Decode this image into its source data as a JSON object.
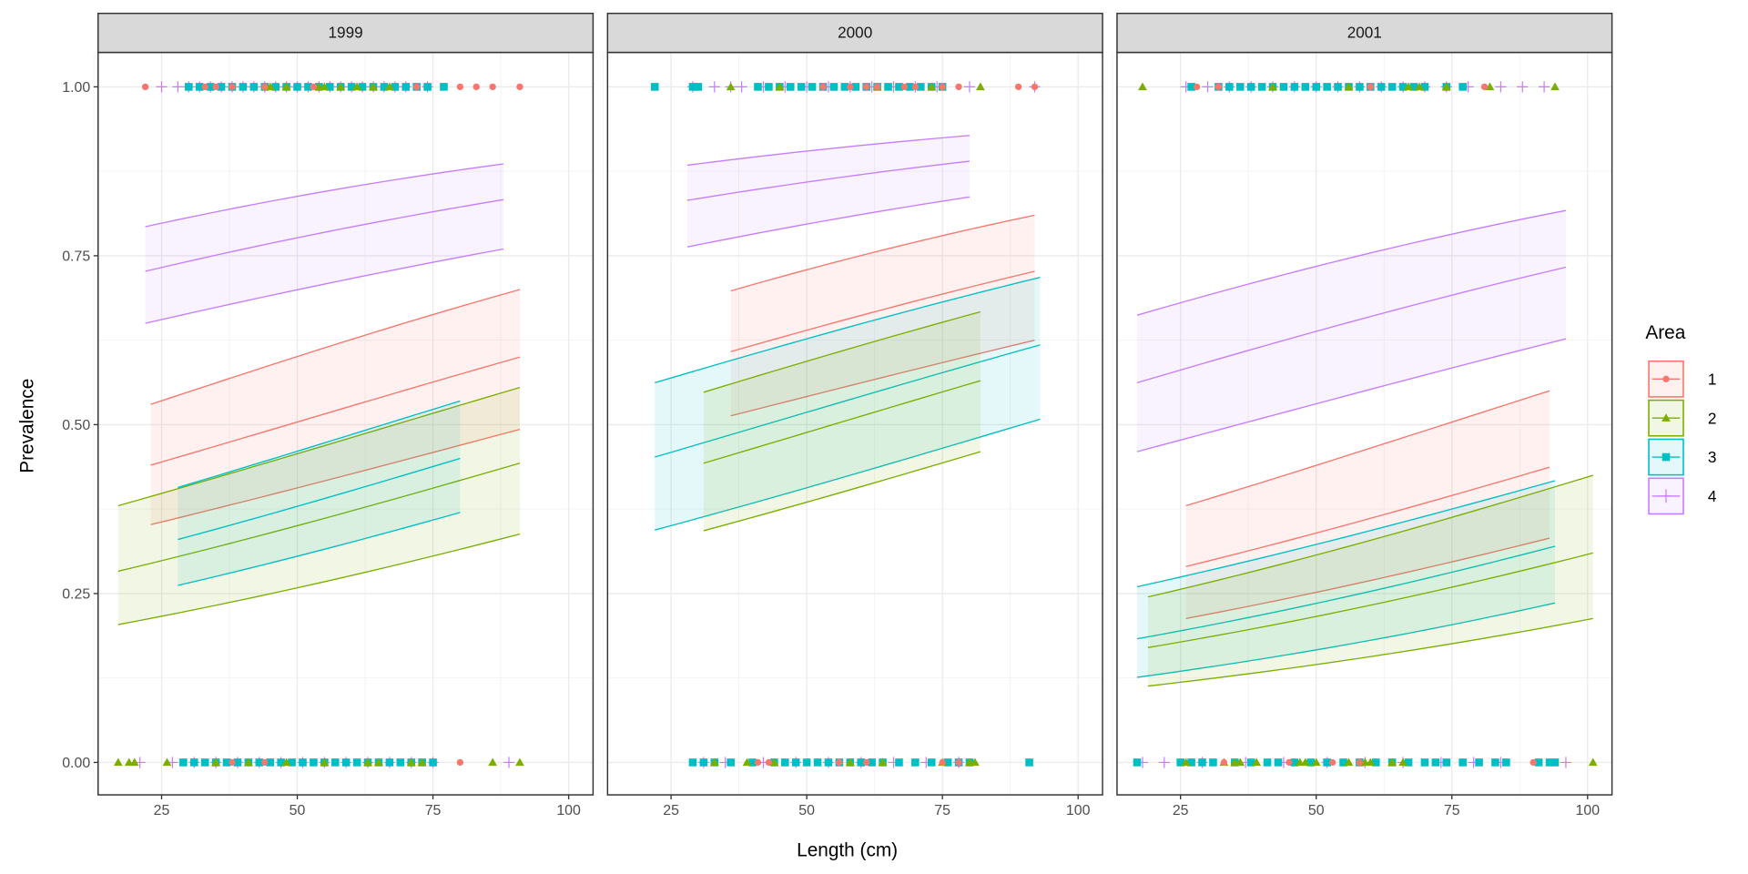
{
  "chart_data": {
    "type": "line",
    "facet_var": "Year",
    "facets": [
      "1999",
      "2000",
      "2001"
    ],
    "xlabel": "Length (cm)",
    "ylabel": "Prevalence",
    "xlim": [
      13.3,
      104.5
    ],
    "ylim": [
      -0.048,
      1.051
    ],
    "x_ticks": [
      "25",
      "50",
      "75",
      "100"
    ],
    "x_tick_values": [
      25,
      50,
      75,
      100
    ],
    "y_ticks": [
      "0.00",
      "0.25",
      "0.50",
      "0.75",
      "1.00"
    ],
    "y_tick_values": [
      0,
      0.25,
      0.5,
      0.75,
      1
    ],
    "grid": true,
    "legend": {
      "title": "Area",
      "position": "right",
      "entries": [
        "1",
        "2",
        "3",
        "4"
      ]
    },
    "colors": {
      "1": "#F8766D",
      "2": "#7CAE00",
      "3": "#00BFC4",
      "4": "#C77CFF"
    },
    "shapes": {
      "1": "circle",
      "2": "triangle",
      "3": "square",
      "4": "plus"
    },
    "series": [
      {
        "year": "1999",
        "area": "4",
        "x": [
          22,
          88
        ],
        "fit": [
          0.727,
          0.833
        ],
        "lower": [
          0.65,
          0.76
        ],
        "upper": [
          0.793,
          0.886
        ]
      },
      {
        "year": "1999",
        "area": "1",
        "x": [
          23,
          91
        ],
        "fit": [
          0.44,
          0.6
        ],
        "lower": [
          0.352,
          0.493
        ],
        "upper": [
          0.53,
          0.7
        ]
      },
      {
        "year": "1999",
        "area": "2",
        "x": [
          17,
          91
        ],
        "fit": [
          0.283,
          0.443
        ],
        "lower": [
          0.204,
          0.338
        ],
        "upper": [
          0.38,
          0.555
        ]
      },
      {
        "year": "1999",
        "area": "3",
        "x": [
          28,
          80
        ],
        "fit": [
          0.33,
          0.45
        ],
        "lower": [
          0.262,
          0.37
        ],
        "upper": [
          0.407,
          0.535
        ]
      },
      {
        "year": "2000",
        "area": "4",
        "x": [
          28,
          80
        ],
        "fit": [
          0.832,
          0.89
        ],
        "lower": [
          0.763,
          0.837
        ],
        "upper": [
          0.884,
          0.928
        ]
      },
      {
        "year": "2000",
        "area": "1",
        "x": [
          36,
          92
        ],
        "fit": [
          0.608,
          0.727
        ],
        "lower": [
          0.513,
          0.625
        ],
        "upper": [
          0.698,
          0.81
        ]
      },
      {
        "year": "2000",
        "area": "3",
        "x": [
          22,
          93
        ],
        "fit": [
          0.452,
          0.618
        ],
        "lower": [
          0.344,
          0.508
        ],
        "upper": [
          0.562,
          0.718
        ]
      },
      {
        "year": "2000",
        "area": "2",
        "x": [
          31,
          82
        ],
        "fit": [
          0.443,
          0.565
        ],
        "lower": [
          0.343,
          0.46
        ],
        "upper": [
          0.548,
          0.667
        ]
      },
      {
        "year": "2001",
        "area": "4",
        "x": [
          17,
          96
        ],
        "fit": [
          0.562,
          0.733
        ],
        "lower": [
          0.46,
          0.627
        ],
        "upper": [
          0.662,
          0.817
        ]
      },
      {
        "year": "2001",
        "area": "1",
        "x": [
          26,
          93
        ],
        "fit": [
          0.29,
          0.437
        ],
        "lower": [
          0.213,
          0.332
        ],
        "upper": [
          0.38,
          0.55
        ]
      },
      {
        "year": "2001",
        "area": "3",
        "x": [
          17,
          94
        ],
        "fit": [
          0.183,
          0.32
        ],
        "lower": [
          0.126,
          0.236
        ],
        "upper": [
          0.26,
          0.417
        ]
      },
      {
        "year": "2001",
        "area": "2",
        "x": [
          19,
          101
        ],
        "fit": [
          0.17,
          0.31
        ],
        "lower": [
          0.113,
          0.213
        ],
        "upper": [
          0.245,
          0.425
        ]
      }
    ],
    "points": [
      {
        "year": "1999",
        "area": "4",
        "y": 1,
        "x": [
          25,
          28,
          30,
          32,
          34,
          36,
          38,
          40,
          42,
          44,
          46,
          48,
          50,
          52,
          54,
          56,
          58,
          60,
          62,
          64,
          66,
          68,
          70,
          74
        ]
      },
      {
        "year": "1999",
        "area": "3",
        "y": 1,
        "x": [
          30,
          32,
          34,
          36,
          38,
          40,
          42,
          44,
          46,
          48,
          50,
          52,
          54,
          56,
          58,
          60,
          62,
          64,
          66,
          68,
          70,
          72,
          74,
          77
        ]
      },
      {
        "year": "1999",
        "area": "2",
        "y": 1,
        "x": [
          45,
          48,
          54,
          55,
          58,
          61,
          64,
          67
        ]
      },
      {
        "year": "1999",
        "area": "1",
        "y": 1,
        "x": [
          22,
          33,
          35,
          38,
          44,
          53,
          72,
          80,
          83,
          86,
          91
        ]
      },
      {
        "year": "1999",
        "area": "4",
        "y": 0,
        "x": [
          21,
          27,
          31,
          35,
          39,
          43,
          47,
          51,
          55,
          59,
          63,
          67,
          71,
          75,
          89
        ]
      },
      {
        "year": "1999",
        "area": "3",
        "y": 0,
        "x": [
          29,
          31,
          33,
          35,
          37,
          39,
          41,
          43,
          45,
          47,
          49,
          51,
          53,
          55,
          57,
          59,
          61,
          63,
          65,
          67,
          69,
          71,
          73,
          75
        ]
      },
      {
        "year": "1999",
        "area": "2",
        "y": 0,
        "x": [
          17,
          19,
          20,
          26,
          35,
          41,
          48,
          55,
          63,
          65,
          71,
          73,
          86,
          91
        ]
      },
      {
        "year": "1999",
        "area": "1",
        "y": 0,
        "x": [
          38,
          44,
          80
        ]
      },
      {
        "year": "2000",
        "area": "4",
        "y": 1,
        "x": [
          29,
          33,
          36,
          38,
          42,
          46,
          50,
          54,
          58,
          62,
          66,
          70,
          74,
          80,
          92
        ]
      },
      {
        "year": "2000",
        "area": "3",
        "y": 1,
        "x": [
          22,
          29,
          30,
          41,
          43,
          45,
          47,
          49,
          51,
          53,
          55,
          57,
          59,
          61,
          63,
          65,
          67,
          69,
          71,
          73,
          75
        ]
      },
      {
        "year": "2000",
        "area": "2",
        "y": 1,
        "x": [
          36,
          45,
          63,
          73,
          82
        ]
      },
      {
        "year": "2000",
        "area": "1",
        "y": 1,
        "x": [
          53,
          58,
          61,
          63,
          68,
          70,
          75,
          78,
          89,
          92
        ]
      },
      {
        "year": "2000",
        "area": "4",
        "y": 0,
        "x": [
          31,
          35,
          42,
          48,
          54,
          60,
          66,
          72,
          78
        ]
      },
      {
        "year": "2000",
        "area": "3",
        "y": 0,
        "x": [
          29,
          31,
          33,
          36,
          40,
          44,
          46,
          48,
          50,
          52,
          54,
          56,
          58,
          60,
          62,
          64,
          67,
          70,
          73,
          76,
          78,
          80,
          91
        ]
      },
      {
        "year": "2000",
        "area": "2",
        "y": 0,
        "x": [
          33,
          39,
          44,
          58,
          64,
          75,
          80,
          81
        ]
      },
      {
        "year": "2000",
        "area": "1",
        "y": 0,
        "x": [
          41,
          43,
          56,
          61,
          75,
          78
        ]
      },
      {
        "year": "2001",
        "area": "4",
        "y": 1,
        "x": [
          26,
          30,
          34,
          38,
          42,
          46,
          50,
          54,
          58,
          62,
          66,
          70,
          74,
          78,
          84,
          88,
          92
        ]
      },
      {
        "year": "2001",
        "area": "3",
        "y": 1,
        "x": [
          27,
          32,
          34,
          36,
          38,
          40,
          42,
          44,
          46,
          48,
          50,
          52,
          54,
          56,
          58,
          60,
          62,
          64,
          66,
          68,
          70,
          74,
          77
        ]
      },
      {
        "year": "2001",
        "area": "2",
        "y": 1,
        "x": [
          18,
          42,
          56,
          67,
          69,
          74,
          82,
          94
        ]
      },
      {
        "year": "2001",
        "area": "1",
        "y": 1,
        "x": [
          28,
          32,
          60,
          81
        ]
      },
      {
        "year": "2001",
        "area": "4",
        "y": 0,
        "x": [
          18,
          22,
          29,
          37,
          44,
          52,
          59,
          66,
          73,
          79,
          84,
          96
        ]
      },
      {
        "year": "2001",
        "area": "3",
        "y": 0,
        "x": [
          17,
          25,
          27,
          29,
          31,
          35,
          38,
          41,
          43,
          46,
          49,
          52,
          55,
          58,
          61,
          64,
          67,
          70,
          72,
          74,
          77,
          80,
          83,
          85,
          91,
          93,
          94
        ]
      },
      {
        "year": "2001",
        "area": "2",
        "y": 0,
        "x": [
          26,
          33,
          35,
          36,
          39,
          47,
          48,
          50,
          56,
          59,
          60,
          64,
          66,
          101
        ]
      },
      {
        "year": "2001",
        "area": "1",
        "y": 0,
        "x": [
          33,
          45,
          53,
          58,
          90
        ]
      }
    ]
  }
}
